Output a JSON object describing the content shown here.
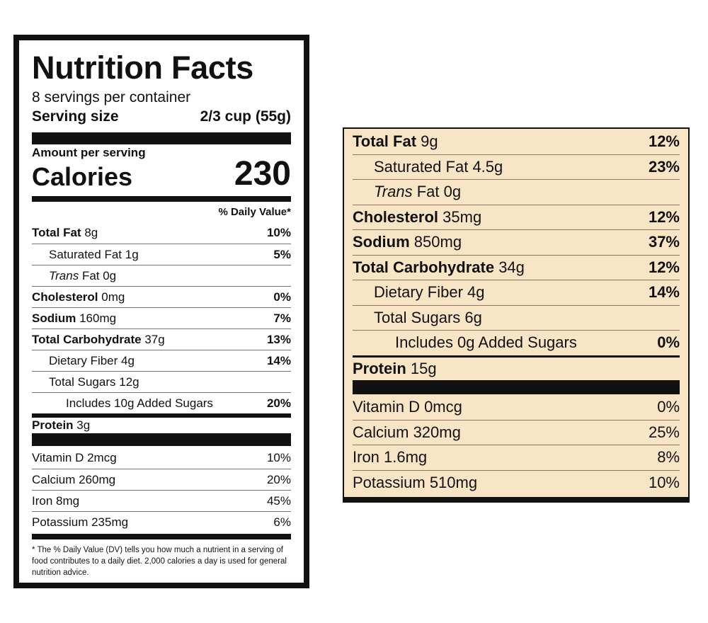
{
  "label_left": {
    "title": "Nutrition Facts",
    "servings_per_container": "8 servings per container",
    "serving_size_label": "Serving size",
    "serving_size_value": "2/3 cup (55g)",
    "amount_per_serving": "Amount per serving",
    "calories_label": "Calories",
    "calories_value": "230",
    "daily_value_header": "% Daily Value*",
    "nutrients": [
      {
        "name": "Total Fat",
        "amount": "8g",
        "dv": "10%"
      },
      {
        "name": "Saturated Fat",
        "amount": "1g",
        "dv": "5%"
      },
      {
        "name": "Trans",
        "amount": "Fat 0g",
        "dv": ""
      },
      {
        "name": "Cholesterol",
        "amount": "0mg",
        "dv": "0%"
      },
      {
        "name": "Sodium",
        "amount": "160mg",
        "dv": "7%"
      },
      {
        "name": "Total Carbohydrate",
        "amount": "37g",
        "dv": "13%"
      },
      {
        "name": "Dietary Fiber",
        "amount": "4g",
        "dv": "14%"
      },
      {
        "name": "Total Sugars",
        "amount": "12g",
        "dv": ""
      },
      {
        "name": "Includes 10g Added Sugars",
        "amount": "",
        "dv": "20%"
      },
      {
        "name": "Protein",
        "amount": "3g",
        "dv": ""
      }
    ],
    "vitamins": [
      {
        "name": "Vitamin D 2mcg",
        "dv": "10%"
      },
      {
        "name": "Calcium 260mg",
        "dv": "20%"
      },
      {
        "name": "Iron 8mg",
        "dv": "45%"
      },
      {
        "name": "Potassium 235mg",
        "dv": "6%"
      }
    ],
    "footnote_star": "*",
    "footnote": "The % Daily Value (DV) tells you how much a nutrient in a serving of food contributes to a daily diet. 2,000 calories a day is used for general nutrition advice."
  },
  "label_right": {
    "nutrients": [
      {
        "name": "Total Fat",
        "amount": "9g",
        "dv": "12%"
      },
      {
        "name": "Saturated Fat",
        "amount": "4.5g",
        "dv": "23%"
      },
      {
        "name": "Trans",
        "amount": "Fat 0g",
        "dv": ""
      },
      {
        "name": "Cholesterol",
        "amount": "35mg",
        "dv": "12%"
      },
      {
        "name": "Sodium",
        "amount": "850mg",
        "dv": "37%"
      },
      {
        "name": "Total Carbohydrate",
        "amount": "34g",
        "dv": "12%"
      },
      {
        "name": "Dietary Fiber",
        "amount": "4g",
        "dv": "14%"
      },
      {
        "name": "Total Sugars",
        "amount": "6g",
        "dv": ""
      },
      {
        "name": "Includes 0g Added Sugars",
        "amount": "",
        "dv": "0%"
      },
      {
        "name": "Protein",
        "amount": "15g",
        "dv": ""
      }
    ],
    "vitamins": [
      {
        "name": "Vitamin D 0mcg",
        "dv": "0%"
      },
      {
        "name": "Calcium 320mg",
        "dv": "25%"
      },
      {
        "name": "Iron 1.6mg",
        "dv": "8%"
      },
      {
        "name": "Potassium 510mg",
        "dv": "10%"
      }
    ]
  },
  "colors": {
    "ink": "#111111",
    "right_label_background": "#f8e5c6"
  }
}
